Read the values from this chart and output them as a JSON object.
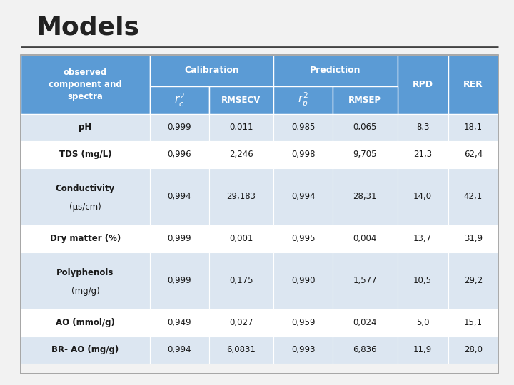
{
  "title": "Models",
  "background": "#f2f2f2",
  "header_bg": "#5b9bd5",
  "row_colors": [
    "#dce6f1",
    "#ffffff"
  ],
  "col_header": "observed\ncomponent and\nspectra",
  "rows": [
    {
      "label": "pH",
      "label_bold": "pH",
      "label_normal": "",
      "multiline": false,
      "values": [
        "0,999",
        "0,011",
        "0,985",
        "0,065",
        "8,3",
        "18,1"
      ]
    },
    {
      "label": "TDS (mg/L)",
      "label_bold": "TDS",
      "label_normal": " (mg/L)",
      "multiline": false,
      "values": [
        "0,996",
        "2,246",
        "0,998",
        "9,705",
        "21,3",
        "62,4"
      ]
    },
    {
      "label": "Conductivity\n(μs/cm)",
      "label_bold": "Conductivity",
      "label_normal": "(μs/cm)",
      "multiline": true,
      "values": [
        "0,994",
        "29,183",
        "0,994",
        "28,31",
        "14,0",
        "42,1"
      ]
    },
    {
      "label": "Dry matter (%)",
      "label_bold": "Dry matter",
      "label_normal": " (%)",
      "multiline": false,
      "values": [
        "0,999",
        "0,001",
        "0,995",
        "0,004",
        "13,7",
        "31,9"
      ]
    },
    {
      "label": "Polyphenols\n(mg/g)",
      "label_bold": "Polyphenols",
      "label_normal": "(mg/g)",
      "multiline": true,
      "values": [
        "0,999",
        "0,175",
        "0,990",
        "1,577",
        "10,5",
        "29,2"
      ]
    },
    {
      "label": "AO (mmol/g)",
      "label_bold": "AO",
      "label_normal": " (mmol/g)",
      "multiline": false,
      "values": [
        "0,949",
        "0,027",
        "0,959",
        "0,024",
        "5,0",
        "15,1"
      ]
    },
    {
      "label": "BR- AO (mg/g)",
      "label_bold": "BR- AO",
      "label_normal": " (mg/g)",
      "multiline": false,
      "values": [
        "0,994",
        "6,0831",
        "0,993",
        "6,836",
        "11,9",
        "28,0"
      ]
    }
  ]
}
